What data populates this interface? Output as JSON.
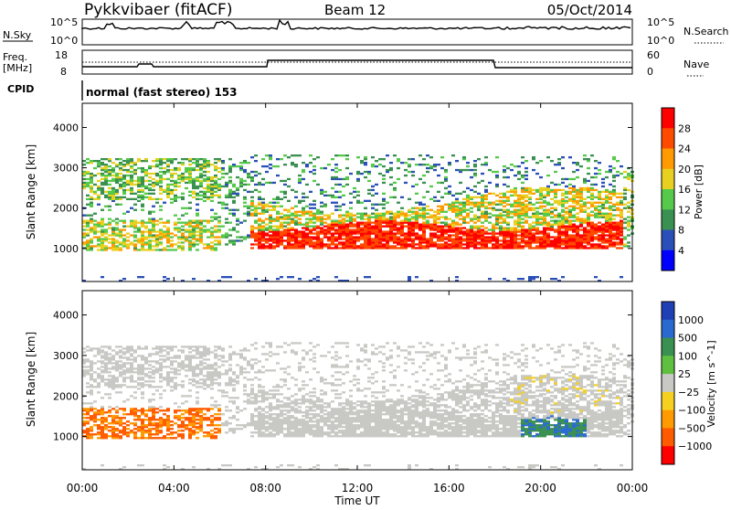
{
  "header": {
    "station": "Pykkvibaer (fitACF)",
    "beam": "Beam 12",
    "date": "05/Oct/2014"
  },
  "status_panels": {
    "nsky_label": "N.Sky",
    "nsky_top_tick": "10^5",
    "nsky_bottom_tick": "10^0",
    "nsearch_label": "N.Search",
    "nsearch_top_tick": "10^5",
    "nsearch_bottom_tick": "10^0",
    "freq_label": "Freq.",
    "freq_unit": "[MHz]",
    "freq_top_tick": "18",
    "freq_bottom_tick": "8",
    "nave_label": "Nave",
    "nave_top_tick": "60",
    "nave_bottom_tick": "0",
    "cpid_label": "CPID",
    "cpid_text": "normal (fast stereo) 153"
  },
  "chart_data": [
    {
      "type": "heatmap",
      "name": "power",
      "ylabel": "Slant Range [km]",
      "yticks": [
        "1000",
        "2000",
        "3000",
        "4000"
      ],
      "ylim": [
        180,
        4600
      ],
      "xlim_hours": [
        0,
        24
      ],
      "colorbar": {
        "label": "Power [dB]",
        "ticks": [
          "4",
          "8",
          "12",
          "16",
          "20",
          "24",
          "28"
        ],
        "colors": [
          "#0000ff",
          "#2a4fb8",
          "#3a9050",
          "#55c94a",
          "#e8d020",
          "#ff9a00",
          "#ff4a00",
          "#ff0000"
        ]
      }
    },
    {
      "type": "heatmap",
      "name": "velocity",
      "ylabel": "Slant Range [km]",
      "yticks": [
        "1000",
        "2000",
        "3000",
        "4000"
      ],
      "ylim": [
        180,
        4600
      ],
      "xlim_hours": [
        0,
        24
      ],
      "colorbar": {
        "label": "Velocity [m s^-1]",
        "ticks": [
          "1000",
          "500",
          "100",
          "25",
          "−25",
          "−100",
          "−500",
          "−1000"
        ],
        "colors": [
          "#1f3fb5",
          "#2a6ad0",
          "#3a9050",
          "#5fc040",
          "#c8c8c4",
          "#f5d020",
          "#ff9a00",
          "#ff5a00",
          "#ff0000"
        ]
      }
    }
  ],
  "xaxis": {
    "label": "Time UT",
    "ticks": [
      "00:00",
      "04:00",
      "08:00",
      "12:00",
      "16:00",
      "20:00",
      "00:00"
    ]
  }
}
